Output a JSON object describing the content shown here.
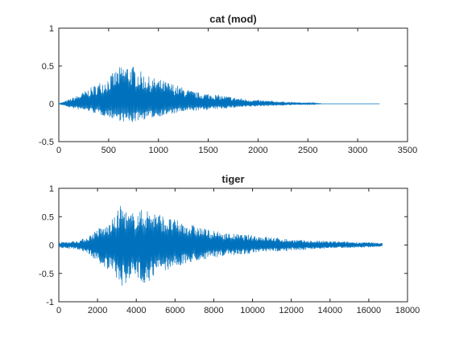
{
  "figure": {
    "background": "#ffffff"
  },
  "chart_data": [
    {
      "type": "line",
      "title": "cat (mod)",
      "xlabel": "",
      "ylabel": "",
      "xlim": [
        0,
        3500
      ],
      "ylim": [
        -0.5,
        1
      ],
      "x_ticks": [
        0,
        500,
        1000,
        1500,
        2000,
        2500,
        3000,
        3500
      ],
      "y_ticks": [
        -0.5,
        0,
        0.5,
        1
      ],
      "x_tick_labels": [
        "0",
        "500",
        "1000",
        "1500",
        "2000",
        "2500",
        "3000",
        "3500"
      ],
      "y_tick_labels": [
        "-0.5",
        "0",
        "0.5",
        "1"
      ],
      "color": "#0072BD",
      "grid": false,
      "series": [
        {
          "samples": 3220,
          "signal_end": 2650,
          "envelope_positive": [
            [
              0,
              0.0
            ],
            [
              100,
              0.06
            ],
            [
              200,
              0.12
            ],
            [
              300,
              0.2
            ],
            [
              400,
              0.28
            ],
            [
              500,
              0.36
            ],
            [
              550,
              0.42
            ],
            [
              600,
              0.48
            ],
            [
              650,
              0.52
            ],
            [
              700,
              0.53
            ],
            [
              750,
              0.5
            ],
            [
              800,
              0.45
            ],
            [
              900,
              0.36
            ],
            [
              1000,
              0.33
            ],
            [
              1100,
              0.29
            ],
            [
              1200,
              0.24
            ],
            [
              1300,
              0.19
            ],
            [
              1400,
              0.15
            ],
            [
              1500,
              0.14
            ],
            [
              1600,
              0.12
            ],
            [
              1700,
              0.1
            ],
            [
              1800,
              0.08
            ],
            [
              1900,
              0.06
            ],
            [
              2000,
              0.05
            ],
            [
              2200,
              0.035
            ],
            [
              2400,
              0.02
            ],
            [
              2600,
              0.01
            ],
            [
              2650,
              0.0
            ],
            [
              3220,
              0.0
            ]
          ],
          "envelope_negative": [
            [
              0,
              0.0
            ],
            [
              100,
              -0.05
            ],
            [
              200,
              -0.08
            ],
            [
              300,
              -0.1
            ],
            [
              400,
              -0.14
            ],
            [
              500,
              -0.18
            ],
            [
              600,
              -0.22
            ],
            [
              700,
              -0.26
            ],
            [
              750,
              -0.25
            ],
            [
              800,
              -0.22
            ],
            [
              900,
              -0.2
            ],
            [
              1000,
              -0.17
            ],
            [
              1100,
              -0.15
            ],
            [
              1200,
              -0.12
            ],
            [
              1300,
              -0.1
            ],
            [
              1400,
              -0.09
            ],
            [
              1500,
              -0.08
            ],
            [
              1600,
              -0.07
            ],
            [
              1700,
              -0.06
            ],
            [
              1800,
              -0.05
            ],
            [
              2000,
              -0.035
            ],
            [
              2200,
              -0.025
            ],
            [
              2400,
              -0.015
            ],
            [
              2600,
              -0.005
            ],
            [
              2650,
              0.0
            ],
            [
              3220,
              0.0
            ]
          ]
        }
      ]
    },
    {
      "type": "line",
      "title": "tiger",
      "xlabel": "",
      "ylabel": "",
      "xlim": [
        0,
        18000
      ],
      "ylim": [
        -1,
        1
      ],
      "x_ticks": [
        0,
        2000,
        4000,
        6000,
        8000,
        10000,
        12000,
        14000,
        16000,
        18000
      ],
      "y_ticks": [
        -1,
        -0.5,
        0,
        0.5,
        1
      ],
      "x_tick_labels": [
        "0",
        "2000",
        "4000",
        "6000",
        "8000",
        "10000",
        "12000",
        "14000",
        "16000",
        "18000"
      ],
      "y_tick_labels": [
        "-1",
        "-0.5",
        "0",
        "0.5",
        "1"
      ],
      "color": "#0072BD",
      "grid": false,
      "series": [
        {
          "samples": 16700,
          "envelope_positive": [
            [
              0,
              0.05
            ],
            [
              1000,
              0.08
            ],
            [
              1500,
              0.15
            ],
            [
              2000,
              0.3
            ],
            [
              2500,
              0.35
            ],
            [
              3000,
              0.55
            ],
            [
              3200,
              0.75
            ],
            [
              3600,
              0.55
            ],
            [
              4000,
              0.6
            ],
            [
              4500,
              0.65
            ],
            [
              5000,
              0.6
            ],
            [
              5500,
              0.5
            ],
            [
              6000,
              0.45
            ],
            [
              6500,
              0.4
            ],
            [
              7000,
              0.35
            ],
            [
              8000,
              0.25
            ],
            [
              9000,
              0.2
            ],
            [
              10000,
              0.18
            ],
            [
              11000,
              0.14
            ],
            [
              12000,
              0.1
            ],
            [
              13000,
              0.08
            ],
            [
              14000,
              0.07
            ],
            [
              15000,
              0.06
            ],
            [
              16000,
              0.05
            ],
            [
              16700,
              0.04
            ]
          ],
          "envelope_negative": [
            [
              0,
              -0.05
            ],
            [
              1000,
              -0.08
            ],
            [
              1500,
              -0.15
            ],
            [
              2000,
              -0.3
            ],
            [
              2500,
              -0.45
            ],
            [
              3000,
              -0.6
            ],
            [
              3300,
              -0.78
            ],
            [
              3600,
              -0.6
            ],
            [
              4000,
              -0.62
            ],
            [
              4500,
              -0.68
            ],
            [
              5000,
              -0.55
            ],
            [
              5500,
              -0.45
            ],
            [
              6000,
              -0.4
            ],
            [
              6500,
              -0.35
            ],
            [
              7000,
              -0.3
            ],
            [
              8000,
              -0.22
            ],
            [
              9000,
              -0.18
            ],
            [
              10000,
              -0.15
            ],
            [
              11000,
              -0.12
            ],
            [
              12000,
              -0.1
            ],
            [
              13000,
              -0.08
            ],
            [
              14000,
              -0.06
            ],
            [
              15000,
              -0.05
            ],
            [
              16000,
              -0.04
            ],
            [
              16700,
              -0.03
            ]
          ]
        }
      ]
    }
  ]
}
